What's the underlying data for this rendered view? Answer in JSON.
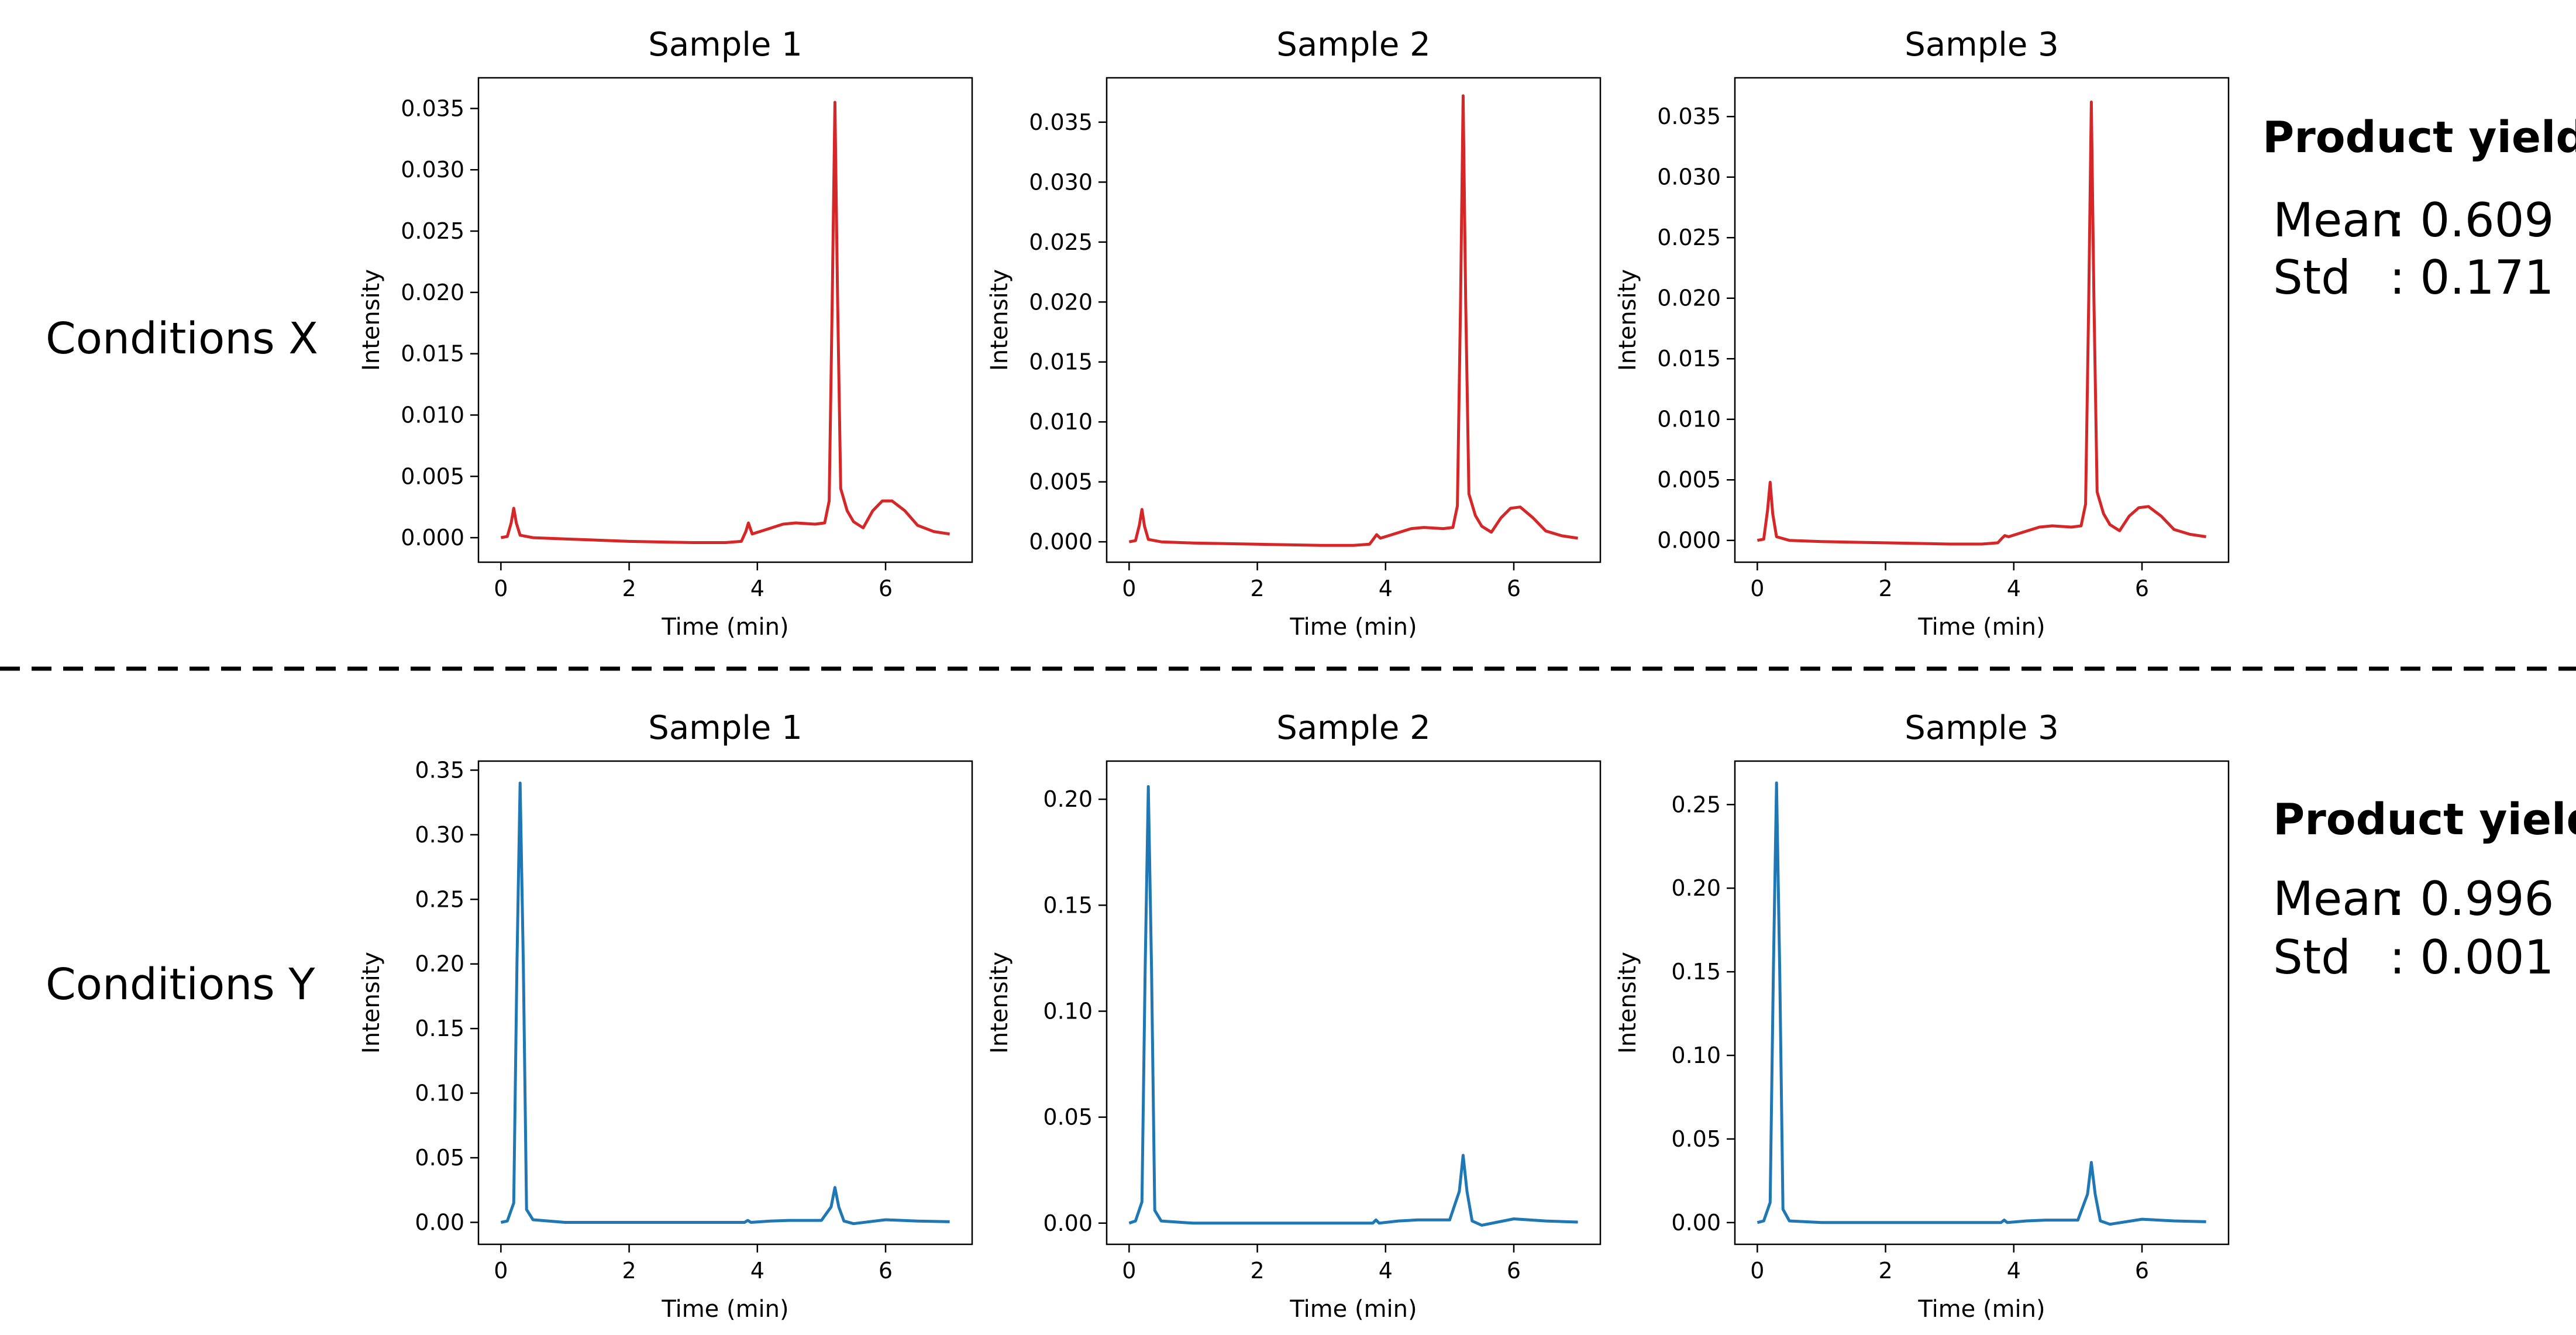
{
  "figure": {
    "rows": [
      {
        "condition_label": "Conditions X",
        "series_color": "#d62728",
        "yield": {
          "title": "Product yield",
          "mean_label": "Mean",
          "mean_value": ": 0.609",
          "std_label": "Std",
          "std_value": ": 0.171"
        }
      },
      {
        "condition_label": "Conditions Y",
        "series_color": "#1f77b4",
        "yield": {
          "title": "Product yield",
          "mean_label": "Mean",
          "mean_value": ": 0.996",
          "std_label": "Std",
          "std_value": ": 0.001"
        }
      }
    ],
    "separator": "dashed-line"
  },
  "chart_data": [
    {
      "type": "line",
      "row": 0,
      "title": "Sample 1",
      "xlabel": "Time (min)",
      "ylabel": "Intensity",
      "xlim": [
        -0.35,
        7.35
      ],
      "ylim": [
        -0.002,
        0.0375
      ],
      "xticks": [
        0,
        2,
        4,
        6
      ],
      "xtick_labels": [
        "0",
        "2",
        "4",
        "6"
      ],
      "yticks": [
        0,
        0.005,
        0.01,
        0.015,
        0.02,
        0.025,
        0.03,
        0.035
      ],
      "ytick_labels": [
        "0.000",
        "0.005",
        "0.010",
        "0.015",
        "0.020",
        "0.025",
        "0.030",
        "0.035"
      ],
      "series": [
        {
          "color": "#d62728",
          "x": [
            0,
            0.1,
            0.16,
            0.2,
            0.24,
            0.3,
            0.5,
            1,
            2,
            3,
            3.5,
            3.75,
            3.82,
            3.86,
            3.92,
            4.1,
            4.4,
            4.6,
            4.9,
            5.05,
            5.12,
            5.17,
            5.21,
            5.25,
            5.3,
            5.4,
            5.5,
            5.65,
            5.8,
            5.95,
            6.1,
            6.3,
            6.5,
            6.75,
            7
          ],
          "y": [
            0,
            0.0001,
            0.0012,
            0.0024,
            0.0012,
            0.0002,
            0,
            -0.0001,
            -0.0003,
            -0.0004,
            -0.0004,
            -0.0003,
            0.0005,
            0.0012,
            0.0003,
            0.0006,
            0.0011,
            0.0012,
            0.0011,
            0.0012,
            0.003,
            0.02,
            0.0355,
            0.02,
            0.004,
            0.0022,
            0.0013,
            0.0008,
            0.0022,
            0.003,
            0.003,
            0.0022,
            0.001,
            0.0005,
            0.0003
          ]
        }
      ]
    },
    {
      "type": "line",
      "row": 0,
      "title": "Sample 2",
      "xlabel": "Time (min)",
      "ylabel": "Intensity",
      "xlim": [
        -0.35,
        7.35
      ],
      "ylim": [
        -0.0017,
        0.0387
      ],
      "xticks": [
        0,
        2,
        4,
        6
      ],
      "xtick_labels": [
        "0",
        "2",
        "4",
        "6"
      ],
      "yticks": [
        0,
        0.005,
        0.01,
        0.015,
        0.02,
        0.025,
        0.03,
        0.035
      ],
      "ytick_labels": [
        "0.000",
        "0.005",
        "0.010",
        "0.015",
        "0.020",
        "0.025",
        "0.030",
        "0.035"
      ],
      "series": [
        {
          "color": "#d62728",
          "x": [
            0,
            0.1,
            0.16,
            0.2,
            0.24,
            0.3,
            0.5,
            1,
            2,
            3,
            3.5,
            3.75,
            3.82,
            3.86,
            3.92,
            4.1,
            4.4,
            4.6,
            4.9,
            5.05,
            5.12,
            5.17,
            5.21,
            5.25,
            5.3,
            5.4,
            5.5,
            5.65,
            5.8,
            5.95,
            6.1,
            6.3,
            6.5,
            6.75,
            7
          ],
          "y": [
            0,
            0.0001,
            0.0014,
            0.0027,
            0.0013,
            0.0002,
            0,
            -0.0001,
            -0.0002,
            -0.0003,
            -0.0003,
            -0.0002,
            0.0003,
            0.0006,
            0.0003,
            0.0006,
            0.0011,
            0.0012,
            0.0011,
            0.0012,
            0.003,
            0.02,
            0.0372,
            0.02,
            0.004,
            0.0022,
            0.0013,
            0.0008,
            0.002,
            0.0028,
            0.0029,
            0.002,
            0.0009,
            0.0005,
            0.0003
          ]
        }
      ]
    },
    {
      "type": "line",
      "row": 0,
      "title": "Sample 3",
      "xlabel": "Time (min)",
      "ylabel": "Intensity",
      "xlim": [
        -0.35,
        7.35
      ],
      "ylim": [
        -0.0018,
        0.0382
      ],
      "xticks": [
        0,
        2,
        4,
        6
      ],
      "xtick_labels": [
        "0",
        "2",
        "4",
        "6"
      ],
      "yticks": [
        0,
        0.005,
        0.01,
        0.015,
        0.02,
        0.025,
        0.03,
        0.035
      ],
      "ytick_labels": [
        "0.000",
        "0.005",
        "0.010",
        "0.015",
        "0.020",
        "0.025",
        "0.030",
        "0.035"
      ],
      "series": [
        {
          "color": "#d62728",
          "x": [
            0,
            0.1,
            0.16,
            0.2,
            0.24,
            0.3,
            0.5,
            1,
            2,
            3,
            3.5,
            3.75,
            3.82,
            3.86,
            3.92,
            4.1,
            4.4,
            4.6,
            4.9,
            5.05,
            5.12,
            5.17,
            5.21,
            5.25,
            5.3,
            5.4,
            5.5,
            5.65,
            5.8,
            5.95,
            6.1,
            6.3,
            6.5,
            6.75,
            7
          ],
          "y": [
            0,
            0.0001,
            0.0025,
            0.0048,
            0.0022,
            0.0003,
            0,
            -0.0001,
            -0.0002,
            -0.0003,
            -0.0003,
            -0.0002,
            0.0002,
            0.0004,
            0.0003,
            0.0006,
            0.0011,
            0.0012,
            0.0011,
            0.0012,
            0.003,
            0.02,
            0.0362,
            0.02,
            0.004,
            0.0022,
            0.0013,
            0.0008,
            0.002,
            0.0027,
            0.0028,
            0.002,
            0.0009,
            0.0005,
            0.0003
          ]
        }
      ]
    },
    {
      "type": "line",
      "row": 1,
      "title": "Sample 1",
      "xlabel": "Time (min)",
      "ylabel": "Intensity",
      "xlim": [
        -0.35,
        7.35
      ],
      "ylim": [
        -0.017,
        0.357
      ],
      "xticks": [
        0,
        2,
        4,
        6
      ],
      "xtick_labels": [
        "0",
        "2",
        "4",
        "6"
      ],
      "yticks": [
        0,
        0.05,
        0.1,
        0.15,
        0.2,
        0.25,
        0.3,
        0.35
      ],
      "ytick_labels": [
        "0.00",
        "0.05",
        "0.10",
        "0.15",
        "0.20",
        "0.25",
        "0.30",
        "0.35"
      ],
      "series": [
        {
          "color": "#1f77b4",
          "x": [
            0,
            0.1,
            0.2,
            0.25,
            0.3,
            0.35,
            0.4,
            0.5,
            1,
            2,
            3,
            3.8,
            3.85,
            3.9,
            4.2,
            4.5,
            5.0,
            5.15,
            5.21,
            5.27,
            5.35,
            5.5,
            6,
            6.5,
            7
          ],
          "y": [
            0,
            0.001,
            0.015,
            0.2,
            0.34,
            0.2,
            0.01,
            0.002,
            0,
            0,
            0,
            0,
            0.0015,
            0,
            0.001,
            0.0015,
            0.0015,
            0.012,
            0.027,
            0.012,
            0.001,
            -0.001,
            0.002,
            0.001,
            0.0005
          ]
        }
      ]
    },
    {
      "type": "line",
      "row": 1,
      "title": "Sample 2",
      "xlabel": "Time (min)",
      "ylabel": "Intensity",
      "xlim": [
        -0.35,
        7.35
      ],
      "ylim": [
        -0.01,
        0.218
      ],
      "xticks": [
        0,
        2,
        4,
        6
      ],
      "xtick_labels": [
        "0",
        "2",
        "4",
        "6"
      ],
      "yticks": [
        0,
        0.05,
        0.1,
        0.15,
        0.2
      ],
      "ytick_labels": [
        "0.00",
        "0.05",
        "0.10",
        "0.15",
        "0.20"
      ],
      "series": [
        {
          "color": "#1f77b4",
          "x": [
            0,
            0.1,
            0.2,
            0.25,
            0.3,
            0.35,
            0.4,
            0.5,
            1,
            2,
            3,
            3.8,
            3.85,
            3.9,
            4.2,
            4.5,
            5.0,
            5.15,
            5.21,
            5.27,
            5.35,
            5.5,
            6,
            6.5,
            7
          ],
          "y": [
            0,
            0.001,
            0.01,
            0.12,
            0.206,
            0.12,
            0.006,
            0.001,
            0,
            0,
            0,
            0,
            0.0015,
            0,
            0.001,
            0.0015,
            0.0015,
            0.015,
            0.032,
            0.015,
            0.001,
            -0.001,
            0.002,
            0.001,
            0.0005
          ]
        }
      ]
    },
    {
      "type": "line",
      "row": 1,
      "title": "Sample 3",
      "xlabel": "Time (min)",
      "ylabel": "Intensity",
      "xlim": [
        -0.35,
        7.35
      ],
      "ylim": [
        -0.013,
        0.276
      ],
      "xticks": [
        0,
        2,
        4,
        6
      ],
      "xtick_labels": [
        "0",
        "2",
        "4",
        "6"
      ],
      "yticks": [
        0,
        0.05,
        0.1,
        0.15,
        0.2,
        0.25
      ],
      "ytick_labels": [
        "0.00",
        "0.05",
        "0.10",
        "0.15",
        "0.20",
        "0.25"
      ],
      "series": [
        {
          "color": "#1f77b4",
          "x": [
            0,
            0.1,
            0.2,
            0.25,
            0.3,
            0.35,
            0.4,
            0.5,
            1,
            2,
            3,
            3.8,
            3.85,
            3.9,
            4.2,
            4.5,
            5.0,
            5.15,
            5.21,
            5.27,
            5.35,
            5.5,
            6,
            6.5,
            7
          ],
          "y": [
            0,
            0.001,
            0.012,
            0.15,
            0.263,
            0.15,
            0.008,
            0.001,
            0,
            0,
            0,
            0,
            0.0015,
            0,
            0.001,
            0.0015,
            0.0015,
            0.017,
            0.036,
            0.017,
            0.001,
            -0.001,
            0.002,
            0.001,
            0.0005
          ]
        }
      ]
    }
  ]
}
